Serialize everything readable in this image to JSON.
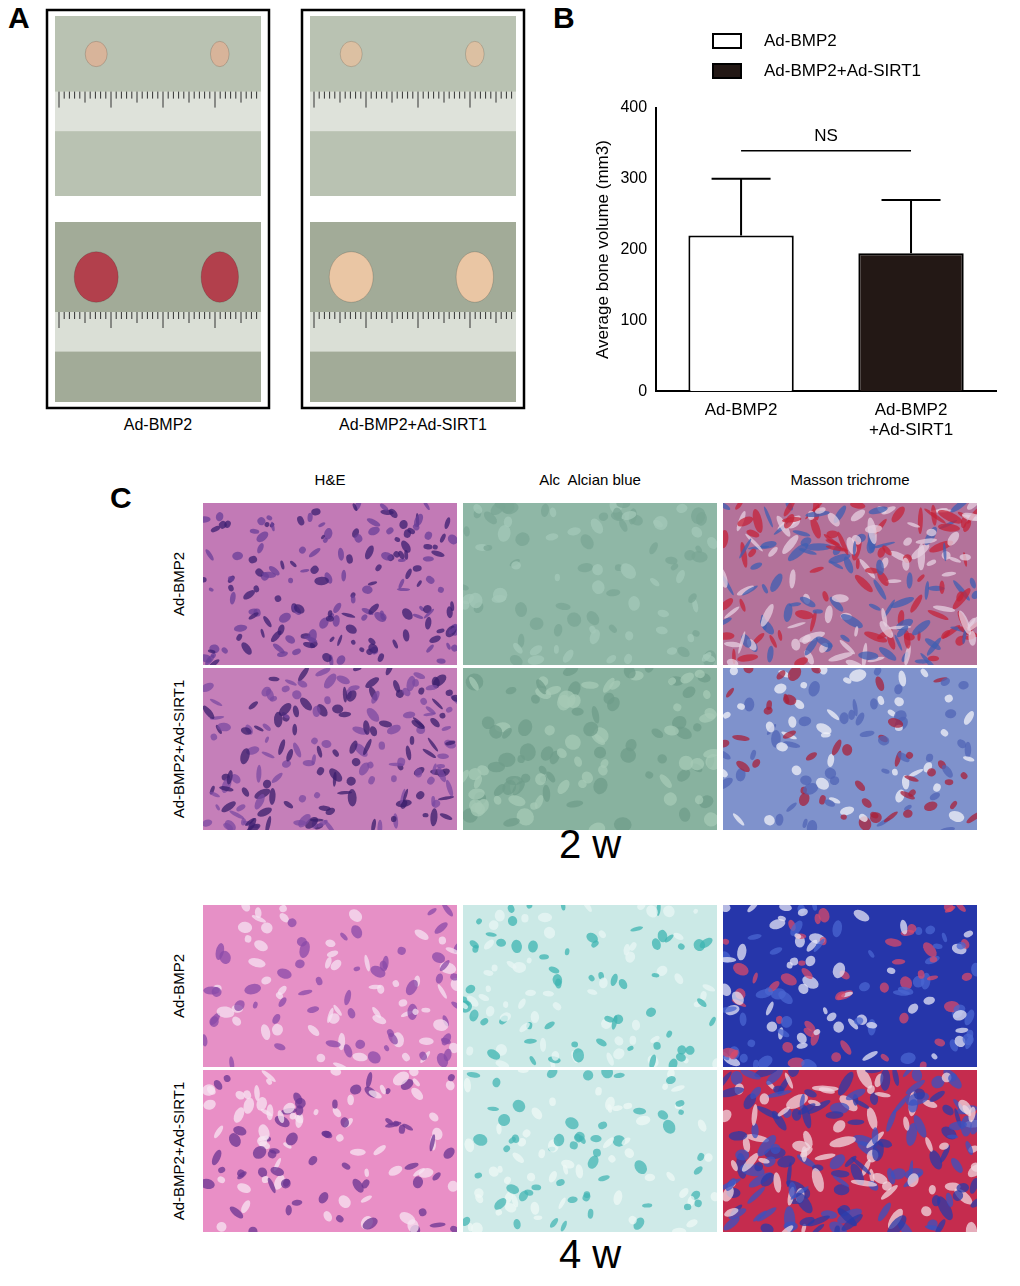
{
  "panel_a": {
    "label": "A",
    "groups": [
      "Ad-BMP2",
      "Ad-BMP2+Ad-SIRT1"
    ]
  },
  "panel_b": {
    "label": "B"
  },
  "chart_data": {
    "type": "bar",
    "y_label": "Average bone volume (mm3)",
    "categories": [
      "Ad-BMP2",
      "Ad-BMP2\n+Ad-SIRT1"
    ],
    "series": [
      {
        "name": "Ad-BMP2",
        "color": "#ffffff",
        "values": [
          220,
          null
        ],
        "errors": [
          80,
          null
        ]
      },
      {
        "name": "Ad-BMP2+Ad-SIRT1",
        "color": "#231815",
        "values": [
          null,
          195
        ],
        "errors": [
          null,
          75
        ]
      }
    ],
    "ylim": [
      0,
      400
    ],
    "yticks": [
      0,
      100,
      200,
      300,
      400
    ],
    "grid": false,
    "legend": "top",
    "annotations": [
      {
        "text": "NS",
        "between": [
          0,
          1
        ]
      }
    ]
  },
  "panel_c": {
    "label": "C",
    "stains": [
      "H&E",
      "Alc  Alcian blue",
      "Masson trichrome"
    ],
    "rows": [
      "Ad-BMP2",
      "Ad-BMP2+Ad-SIRT1"
    ],
    "timepoints": [
      "2 w",
      "4 w"
    ]
  }
}
